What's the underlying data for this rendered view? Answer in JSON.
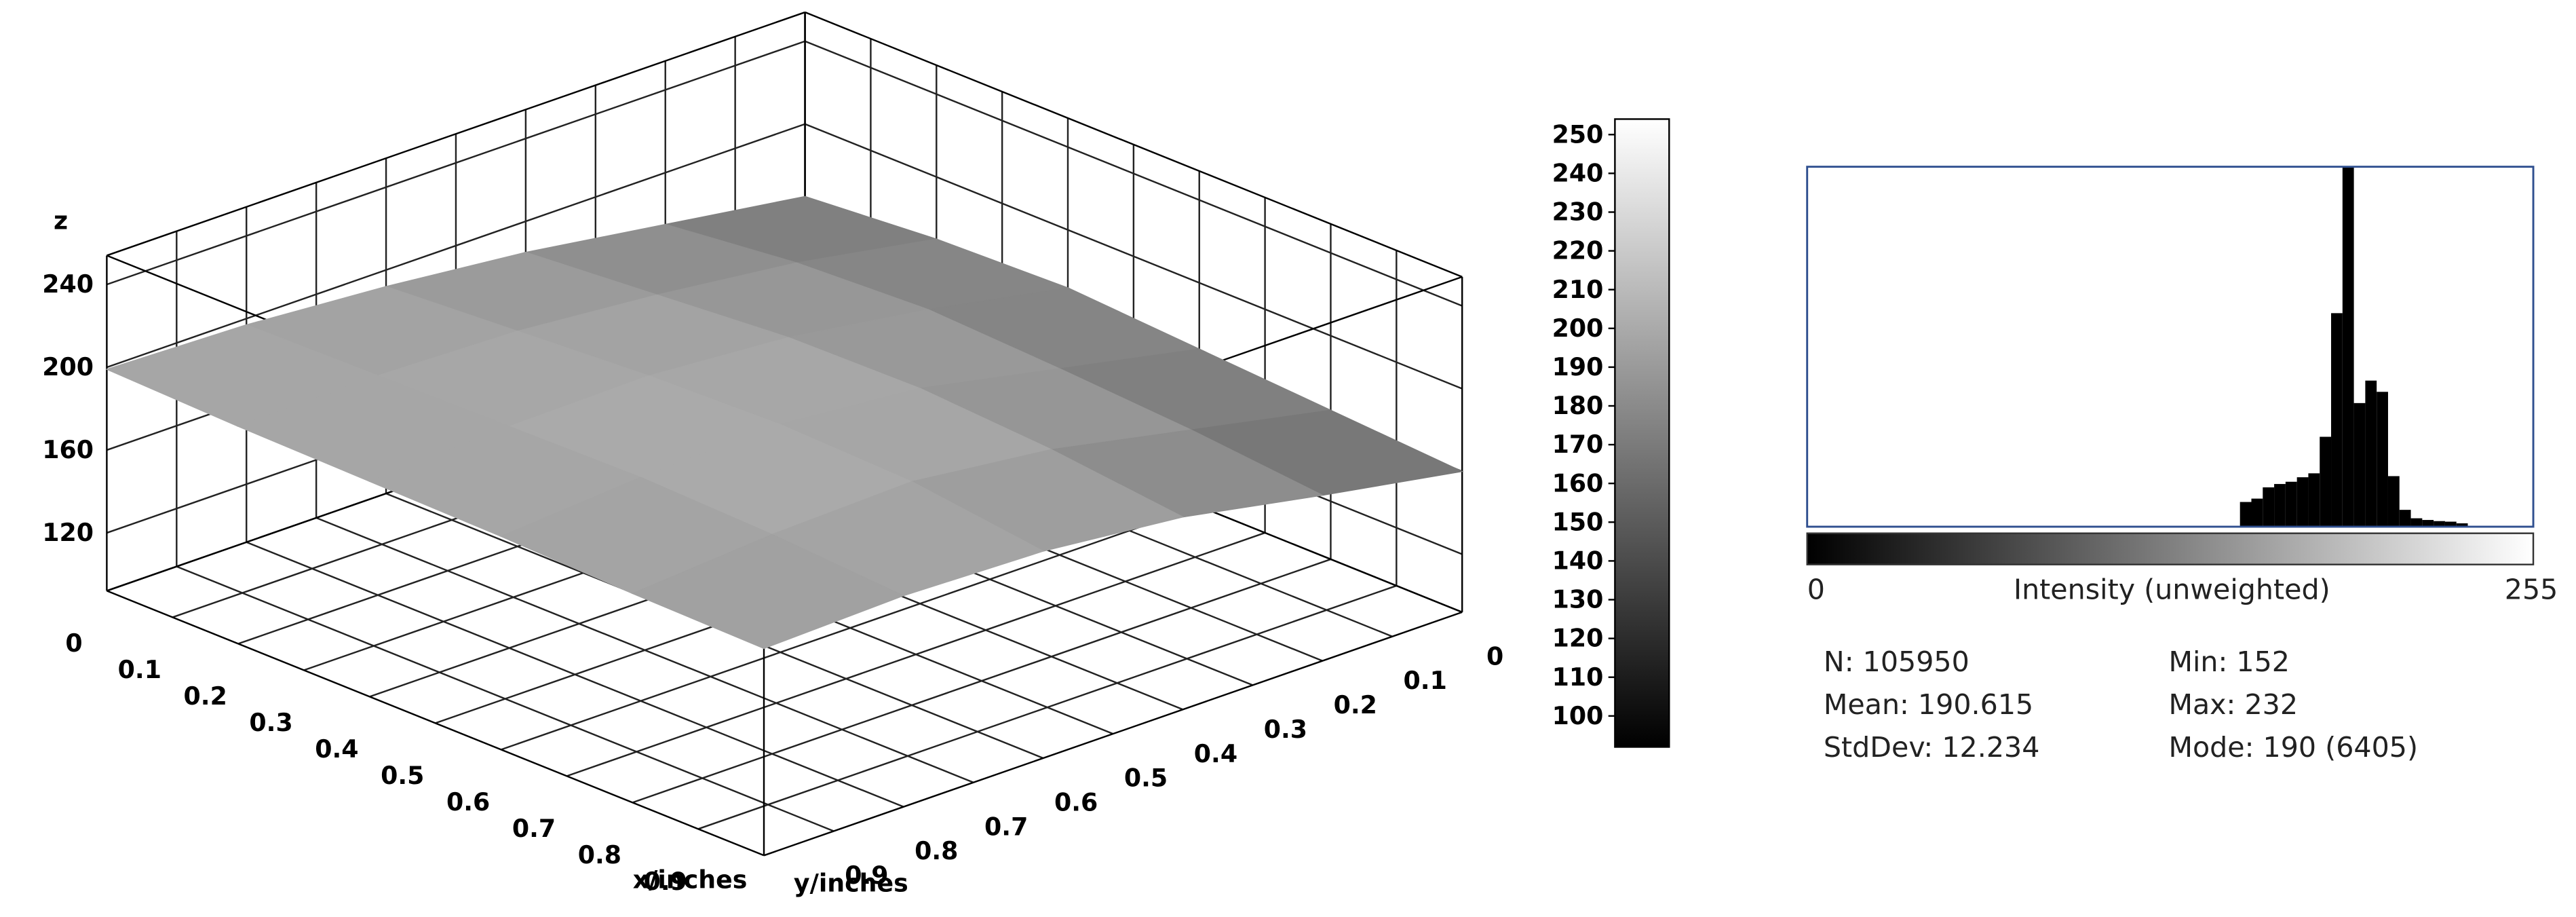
{
  "chart_data": [
    {
      "type": "surface",
      "x_label": "x/inches",
      "y_label": "y/inches",
      "z_label": "z",
      "x": [
        0,
        0.2,
        0.4,
        0.6,
        0.8,
        1
      ],
      "y": [
        0,
        0.2,
        0.4,
        0.6,
        0.8,
        1
      ],
      "z": [
        [
          165,
          175,
          185,
          192,
          197,
          199
        ],
        [
          170,
          182,
          190,
          196,
          198,
          197
        ],
        [
          172,
          185,
          195,
          200,
          199,
          196
        ],
        [
          168,
          182,
          196,
          202,
          200,
          195
        ],
        [
          164,
          178,
          192,
          200,
          198,
          193
        ],
        [
          160,
          172,
          185,
          192,
          194,
          192
        ]
      ],
      "xlim": [
        0,
        1
      ],
      "ylim": [
        0,
        1
      ],
      "zlim": [
        92,
        254
      ],
      "xticks": [
        0,
        0.1,
        0.2,
        0.3,
        0.4,
        0.5,
        0.6,
        0.7,
        0.8,
        0.9
      ],
      "yticks": [
        0,
        0.1,
        0.2,
        0.3,
        0.4,
        0.5,
        0.6,
        0.7,
        0.8,
        0.9
      ],
      "zticks": [
        120,
        160,
        200,
        240
      ],
      "colorbar": {
        "lim": [
          92,
          254
        ],
        "ticks": [
          100,
          110,
          120,
          130,
          140,
          150,
          160,
          170,
          180,
          190,
          200,
          210,
          220,
          230,
          240,
          250
        ]
      }
    },
    {
      "type": "histogram",
      "xlabel": "Intensity (unweighted)",
      "bins": [
        152,
        156,
        160,
        164,
        168,
        172,
        176,
        180,
        184,
        188,
        192,
        196,
        200,
        204,
        208,
        212,
        216,
        220,
        224,
        228,
        232
      ],
      "counts": [
        440,
        500,
        700,
        760,
        800,
        880,
        950,
        1600,
        3800,
        6405,
        2200,
        2600,
        2400,
        900,
        300,
        150,
        120,
        100,
        90,
        60
      ],
      "color": "#000000",
      "frame_color": "#2f4f8f",
      "xlim": [
        0,
        255
      ],
      "xticks": [
        0,
        255
      ],
      "stats": [
        "N: 105950",
        "Mean: 190.615",
        "StdDev: 12.234",
        "Min: 152",
        "Max: 232",
        "Mode: 190 (6405)"
      ]
    }
  ]
}
